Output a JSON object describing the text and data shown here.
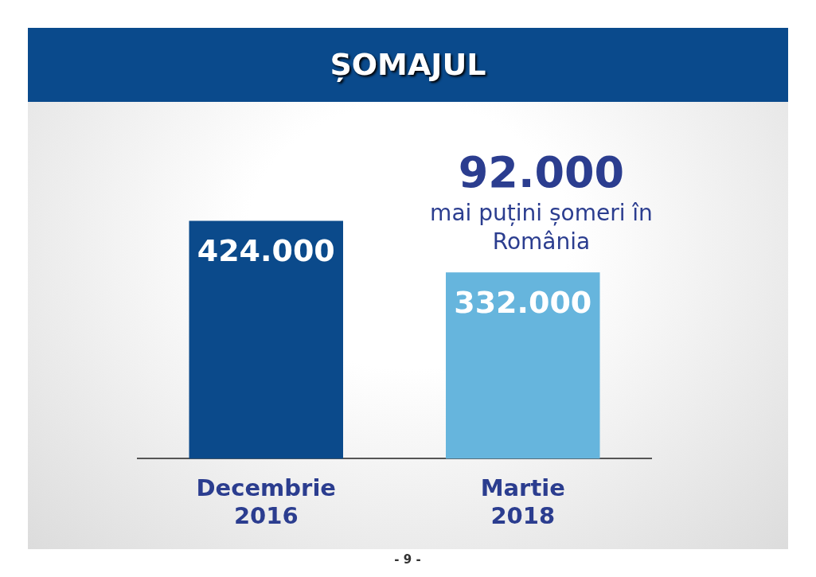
{
  "chart_data": {
    "type": "bar",
    "title": "ȘOMAJUL",
    "categories": [
      "Decembrie 2016",
      "Martie 2018"
    ],
    "values": [
      424000,
      332000
    ],
    "colors": [
      "#0b4a8b",
      "#66b5dd"
    ],
    "value_labels": [
      "424.000",
      "332.000"
    ],
    "annotations": [
      "92.000",
      "mai puțini șomeri în România",
      "- 9 -"
    ],
    "grid": false,
    "legend": false
  }
}
